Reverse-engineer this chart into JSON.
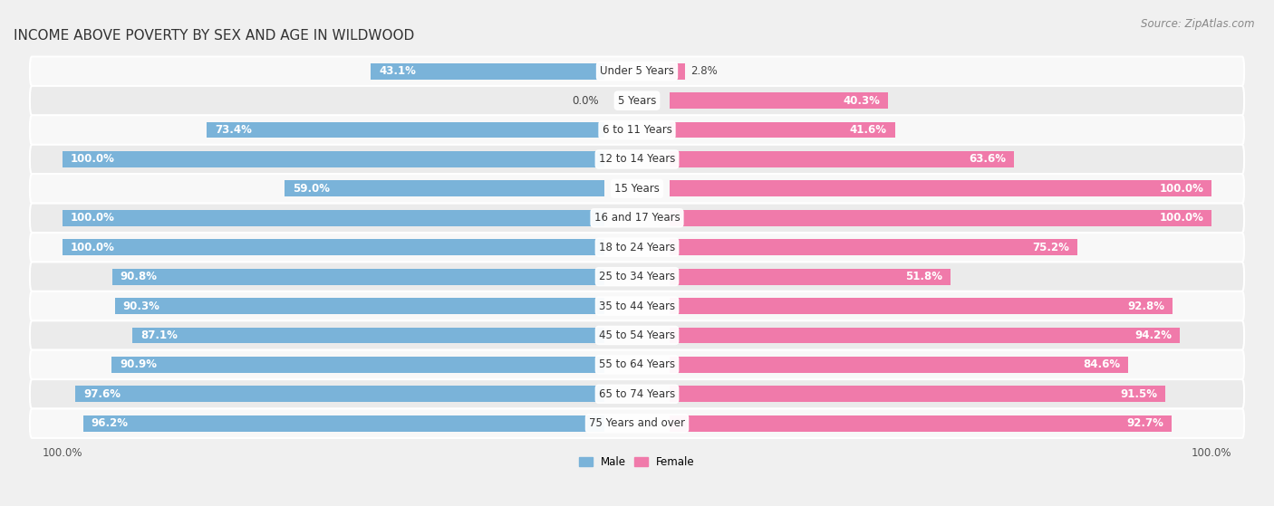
{
  "title": "INCOME ABOVE POVERTY BY SEX AND AGE IN WILDWOOD",
  "source": "Source: ZipAtlas.com",
  "categories": [
    "Under 5 Years",
    "5 Years",
    "6 to 11 Years",
    "12 to 14 Years",
    "15 Years",
    "16 and 17 Years",
    "18 to 24 Years",
    "25 to 34 Years",
    "35 to 44 Years",
    "45 to 54 Years",
    "55 to 64 Years",
    "65 to 74 Years",
    "75 Years and over"
  ],
  "male_values": [
    43.1,
    0.0,
    73.4,
    100.0,
    59.0,
    100.0,
    100.0,
    90.8,
    90.3,
    87.1,
    90.9,
    97.6,
    96.2
  ],
  "female_values": [
    2.8,
    40.3,
    41.6,
    63.6,
    100.0,
    100.0,
    75.2,
    51.8,
    92.8,
    94.2,
    84.6,
    91.5,
    92.7
  ],
  "male_color": "#7ab3d9",
  "female_color": "#f07aaa",
  "male_label": "Male",
  "female_label": "Female",
  "background_color": "#f0f0f0",
  "row_color_light": "#f8f8f8",
  "row_color_dark": "#ebebeb",
  "bar_height": 0.55,
  "title_fontsize": 11,
  "label_fontsize": 8.5,
  "value_fontsize": 8.5,
  "source_fontsize": 8.5,
  "tick_fontsize": 8.5
}
